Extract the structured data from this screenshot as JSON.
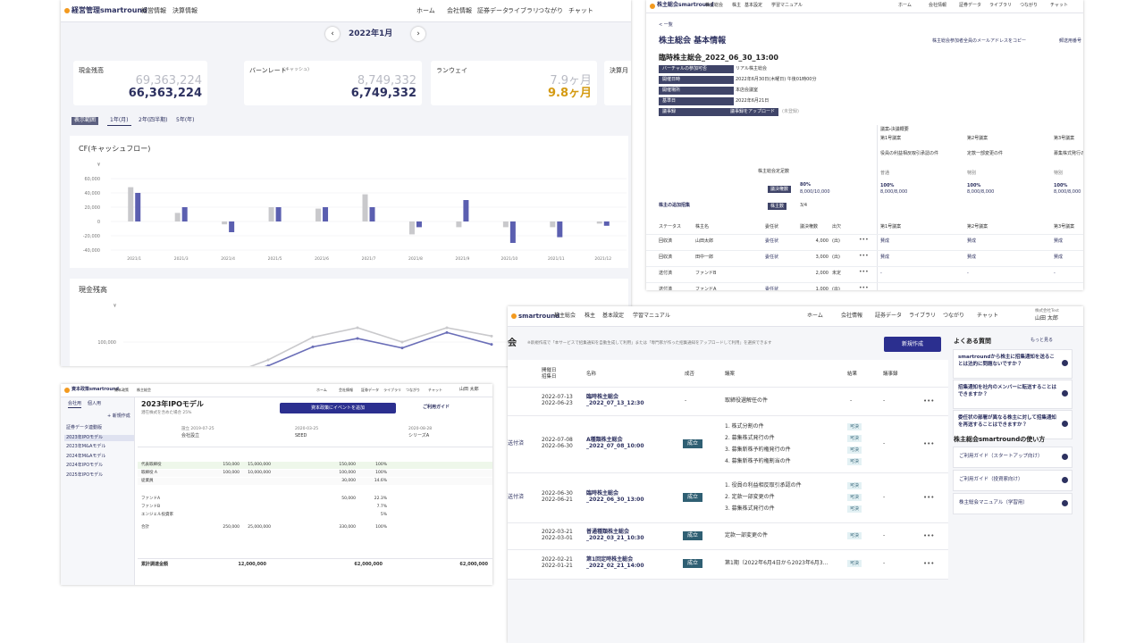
{
  "kpi_panel": {
    "header": {
      "logo": "経営管理smartround",
      "nav": [
        "経営情報",
        "決算情報"
      ],
      "right_nav": [
        "ホーム",
        "会社情報",
        "証券データ",
        "ライブラリ",
        "つながり",
        "チャット"
      ]
    },
    "month": "2022年1月",
    "cards": [
      {
        "label": "現金残高",
        "previous": "69,363,224",
        "current": "66,363,224"
      },
      {
        "label": "バーンレート",
        "note": "(キャッシュ)",
        "previous": "8,749,332",
        "current": "6,749,332"
      },
      {
        "label": "ランウェイ",
        "previous": "7.9ヶ月",
        "current": "9.8ヶ月"
      },
      {
        "label": "決算月"
      }
    ],
    "range_tabs": [
      "表示範囲",
      "1年(月)",
      "2年(四半期)",
      "5年(年)"
    ],
    "cf_chart": {
      "type": "bar",
      "title": "CF(キャッシュフロー)",
      "unit_label": "¥",
      "categories": [
        "2021/1",
        "2021/3",
        "2021/4",
        "2021/5",
        "2021/6",
        "2021/7",
        "2021/8",
        "2021/9",
        "2021/10",
        "2021/11",
        "2021/12"
      ],
      "series": [
        {
          "color": "#c9c9cc",
          "values": [
            48000,
            12000,
            -4000,
            20000,
            18000,
            38000,
            -18000,
            -8000,
            -8000,
            -8000,
            -3000
          ]
        },
        {
          "color": "#5b5fb0",
          "values": [
            40000,
            20000,
            -15000,
            20000,
            20000,
            20000,
            -8000,
            30000,
            -30000,
            -22000,
            -6000
          ]
        }
      ],
      "ylim": [
        -45000,
        70000
      ],
      "yticks": [
        {
          "value": 60000,
          "label": "60,000"
        },
        {
          "value": 40000,
          "label": "40,000"
        },
        {
          "value": 20000,
          "label": "20,000"
        },
        0,
        {
          "value": -20000,
          "label": "-20,000"
        },
        {
          "value": -40000,
          "label": "-40,000"
        }
      ],
      "grid": true
    },
    "cash_chart": {
      "type": "line",
      "title": "現金残高",
      "unit_label": "¥",
      "series": [
        {
          "color": "#c9c9cc",
          "values": [
            68000,
            72000,
            71000,
            85000,
            104000,
            112000,
            100000,
            112000,
            105000
          ]
        },
        {
          "color": "#6b6fb8",
          "values": [
            70000,
            76000,
            70000,
            80000,
            96000,
            103000,
            95000,
            108000,
            98000
          ]
        }
      ],
      "ylim": [
        40000,
        130000
      ],
      "yticks": [
        {
          "value": 100000,
          "label": "100,000"
        }
      ],
      "grid": true
    }
  },
  "meeting_detail": {
    "header": {
      "logo": "株主総会smartround",
      "nav": [
        "株主総会",
        "株主",
        "基本設定",
        "学習マニュアル"
      ],
      "right_nav": [
        "ホーム",
        "会社情報",
        "証券データ",
        "ライブラリ",
        "つながり",
        "チャット"
      ]
    },
    "back": "< 一覧",
    "title": "株主総会 基本情報",
    "links": [
      "株主総会参加者全員のメールアドレスをコピー",
      "郵送用番号"
    ],
    "meeting_name": "臨時株主総会_2022_06_30_13:00",
    "info": [
      {
        "label": "バーチャルの参加可否",
        "value": "リアル株主総会"
      },
      {
        "label": "開催日時",
        "value": "2022年6月30日(木曜日) 午後01時00分"
      },
      {
        "label": "開催場所",
        "value": "本店会議室"
      },
      {
        "label": "基準日",
        "value": "2022年6月21日"
      },
      {
        "label": "議事録",
        "button": "議事録をアップロード",
        "value": "(未登録)"
      }
    ],
    "summary_title": "議案・決議概要",
    "proposals": [
      {
        "no": "第1号議案",
        "name": "役員の利益相反取引承認の件",
        "kind": "普通",
        "rate": "100%",
        "votes": "8,000/8,000"
      },
      {
        "no": "第2号議案",
        "name": "定款一部変更の件",
        "kind": "特別",
        "rate": "100%",
        "votes": "8,000/8,000"
      },
      {
        "no": "第3号議案",
        "name": "募集株式発行の件",
        "kind": "特別",
        "rate": "100%",
        "votes": "8,000/8,000"
      }
    ],
    "quorum_label": "株主総会定足数",
    "quorum_badge": "議決権数",
    "quorum_rate": "80%",
    "quorum_votes": "8,000/10,000",
    "add_invite": "株主の追加招集",
    "holders_badge": "株主数",
    "holders": "3/4",
    "table_header": [
      "ステータス",
      "株主名",
      "委任状",
      "議決権数",
      "出欠",
      "第1号議案",
      "第2号議案",
      "第3号議案"
    ],
    "rows": [
      {
        "status": "回収済",
        "name": "山田太郎",
        "proxy": "委任状",
        "votes": "4,000",
        "attendance": "(出)",
        "answers": [
          "賛成",
          "賛成",
          "賛成"
        ]
      },
      {
        "status": "回収済",
        "name": "田中一郎",
        "proxy": "委任状",
        "votes": "3,000",
        "attendance": "(出)",
        "answers": [
          "賛成",
          "賛成",
          "賛成"
        ]
      },
      {
        "status": "送付済",
        "name": "ファンドB",
        "votes": "2,000",
        "attendance": "未定",
        "answers": [
          "-",
          "-",
          "-"
        ]
      },
      {
        "status": "送付済",
        "name": "ファンドA",
        "proxy": "委任状",
        "votes": "1,000",
        "attendance": "(出)"
      }
    ]
  },
  "capital_policy": {
    "header": {
      "logo": "資本政策smartround",
      "nav": [
        "資本政策",
        "株主総会"
      ],
      "right_nav": [
        "ホーム",
        "会社情報",
        "証券データ",
        "ライブラリ",
        "つながり",
        "チャット"
      ],
      "user": "山田 太郎"
    },
    "tabs": [
      "会社用",
      "個人用"
    ],
    "new": "+ 新規作成",
    "models": [
      "証券データ連動版",
      "2023年IPOモデル",
      "2023年M&Aモデル",
      "2024年M&Aモデル",
      "2024年IPOモデル",
      "2025年IPOモデル"
    ],
    "title": "2023年IPOモデル",
    "subtitle": "潜在株式を含めた場合 25%",
    "add_button": "資本政策にイベントを追加",
    "guide": "ご利用ガイド",
    "events": [
      {
        "date": "設立 2019-07-25",
        "name": "会社設立"
      },
      {
        "date": "2020-03-25",
        "name": "SEED"
      },
      {
        "date": "2020-08-28",
        "name": "シリーズA"
      }
    ],
    "rows": [
      {
        "label": "代表取締役",
        "cells": [
          "150,000",
          "15,000,000",
          "150,000",
          "100%"
        ]
      },
      {
        "label": "取締役 A",
        "cells": [
          "100,000",
          "10,000,000",
          "100,000",
          "100%"
        ]
      },
      {
        "label": "従業員",
        "cells": [
          "",
          "",
          "30,000",
          "14.6%"
        ]
      },
      {
        "label": "ファンドA",
        "cells": [
          "",
          "",
          "50,000",
          "22.3%"
        ]
      },
      {
        "label": "ファンドB",
        "cells": [
          "",
          "",
          "",
          "7.7%"
        ]
      },
      {
        "label": "エンジェル投資家",
        "cells": [
          "",
          "",
          "",
          "5%"
        ]
      },
      {
        "label": "合計",
        "cells": [
          "250,000",
          "25,000,000",
          "330,000",
          "100%"
        ]
      }
    ],
    "total_label": "累計調達金額",
    "totals": [
      "12,000,000",
      "62,000,000",
      "62,000,000"
    ]
  },
  "meeting_list": {
    "header": {
      "logo": "smartround",
      "nav": [
        "株主総会",
        "株主",
        "基本設定",
        "学習マニュアル"
      ],
      "right_nav": [
        "ホーム",
        "会社情報",
        "証券データ",
        "ライブラリ",
        "つながり",
        "チャット"
      ],
      "company": "株式会社Test",
      "user": "山田 太郎"
    },
    "title": "会",
    "note": "※新規作成で「本サービスで招集通知を自動生成して利用」または「専門家が作った招集通知をアップロードして利用」を選択できます",
    "new_button": "新規作成",
    "columns": [
      "開催日",
      "招集日",
      "名称",
      "成否",
      "議案",
      "結果",
      "議事録"
    ],
    "rows": [
      {
        "held": "2022-07-13",
        "notice": "2022-06-23",
        "name": [
          "臨時株主総会",
          "_2022_07_13_12:30"
        ],
        "result": "-",
        "agenda": [
          "取締役選解任の件"
        ],
        "outcomes": [
          "-"
        ],
        "minutes": "-"
      },
      {
        "status": "送付済",
        "held": "2022-07-08",
        "notice": "2022-06-30",
        "name": [
          "A種類株主総会",
          "_2022_07_08_10:00"
        ],
        "result": "成立",
        "agenda": [
          "1. 株式分割の件",
          "2. 募集株式発行の件",
          "3. 募集新株予約権発行の件",
          "4. 募集新株予約権割当の件"
        ],
        "outcomes": [
          "可決",
          "可決",
          "可決",
          "可決"
        ],
        "minutes": "-"
      },
      {
        "status": "送付済",
        "held": "2022-06-30",
        "notice": "2022-06-21",
        "name": [
          "臨時株主総会",
          "_2022_06_30_13:00"
        ],
        "result": "成立",
        "agenda": [
          "1. 役員の利益相反取引承認の件",
          "2. 定款一部変更の件",
          "3. 募集株式発行の件"
        ],
        "outcomes": [
          "可決",
          "可決",
          "可決"
        ],
        "minutes": "-"
      },
      {
        "held": "2022-03-21",
        "notice": "2022-03-01",
        "name": [
          "普通種類株主総会",
          "_2022_03_21_10:30"
        ],
        "result": "成立",
        "agenda": [
          "定款一部変更の件"
        ],
        "outcomes": [
          "可決"
        ],
        "minutes": "-"
      },
      {
        "held": "2022-02-21",
        "notice": "2022-01-21",
        "name": [
          "第1回定時株主総会",
          "_2022_02_21_14:00"
        ],
        "result": "成立",
        "agenda": [
          "第1期（2022年6月4日から2023年6月3..."
        ],
        "outcomes": [
          "可決"
        ],
        "minutes": "-"
      }
    ],
    "faq_title": "よくある質問",
    "faq_more": "もっと見る",
    "faqs": [
      "smartroundから株主に招集通知を送ることは法的に問題ないですか？",
      "招集通知を社内のメンバーに転送することはできますか？",
      "委任状の部署が異なる株主に対して招集通知を再送することはできますか？"
    ],
    "howto_title": "株主総会smartroundの使い方",
    "guides": [
      "ご利用ガイド（スタートアップ向け）",
      "ご利用ガイド（投資家向け）",
      "株主総会マニュアル（学習用）"
    ]
  }
}
